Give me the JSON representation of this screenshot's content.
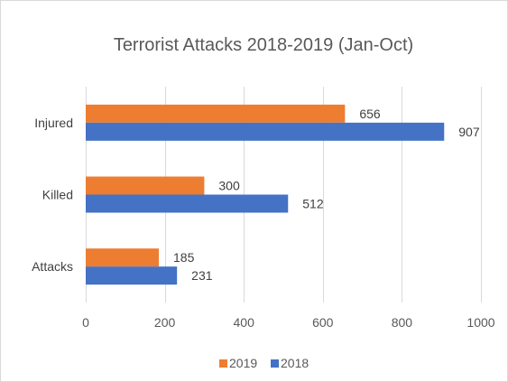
{
  "chart_data": {
    "type": "bar",
    "orientation": "horizontal",
    "title": "Terrorist Attacks 2018-2019 (Jan-Oct)",
    "xlabel": "",
    "ylabel": "",
    "categories": [
      "Injured",
      "Killed",
      "Attacks"
    ],
    "series": [
      {
        "name": "2019",
        "color": "#ed7d31",
        "values": [
          656,
          300,
          185
        ]
      },
      {
        "name": "2018",
        "color": "#4472c4",
        "values": [
          907,
          512,
          231
        ]
      }
    ],
    "xlim": [
      0,
      1000
    ],
    "xticks": [
      "0",
      "200",
      "400",
      "600",
      "800",
      "1000"
    ],
    "grid": true,
    "gridColor": "#d9d9d9",
    "legend": "bottom"
  }
}
